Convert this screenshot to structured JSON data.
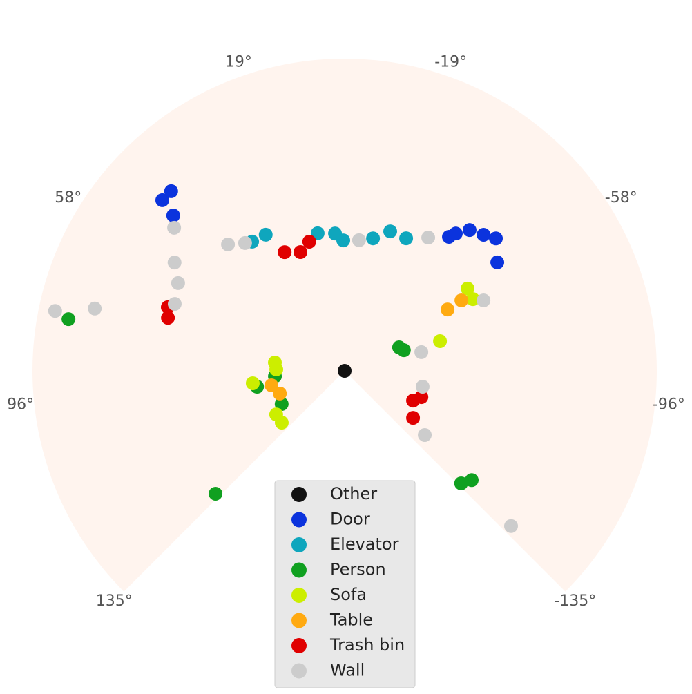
{
  "chart_data": {
    "type": "polar-scatter",
    "thetalim": [
      -135,
      135
    ],
    "rlim": [
      0,
      10
    ],
    "thetaticks": [
      {
        "value": 19,
        "label": "19°"
      },
      {
        "value": -19,
        "label": "-19°"
      },
      {
        "value": 58,
        "label": "58°"
      },
      {
        "value": -58,
        "label": "-58°"
      },
      {
        "value": 96,
        "label": "96°"
      },
      {
        "value": -96,
        "label": "-96°"
      },
      {
        "value": 135,
        "label": "135°"
      },
      {
        "value": -135,
        "label": "-135°"
      }
    ],
    "background": "#fff4ee",
    "legend": "lower center",
    "series": [
      {
        "name": "Other",
        "color": "#111111",
        "theta": [
          0
        ],
        "r": [
          0
        ]
      },
      {
        "name": "Door",
        "color": "#0b33dd",
        "theta": [
          46.9,
          44.0,
          47.8,
          -37.9,
          -39.0,
          -41.6,
          -45.6,
          -48.8,
          -54.6
        ],
        "r": [
          8.0,
          8.0,
          7.41,
          5.44,
          5.66,
          6.03,
          6.23,
          6.44,
          6.0
        ]
      },
      {
        "name": "Elevator",
        "color": "#0fa6bd",
        "theta": [
          35.6,
          30.1,
          11.1,
          4.0,
          0.6,
          -12.1,
          -18.1,
          -24.9
        ],
        "r": [
          5.09,
          5.04,
          4.49,
          4.41,
          4.18,
          4.34,
          4.7,
          4.68
        ]
      },
      {
        "name": "Person",
        "color": "#10a020",
        "theta": [
          79.4,
          133.6,
          100.3,
          94.5,
          117.8,
          -66.7,
          -70.8,
          -134.0,
          -130.7
        ],
        "r": [
          9.0,
          5.71,
          2.85,
          2.24,
          2.28,
          1.9,
          2.01,
          5.19,
          5.37
        ]
      },
      {
        "name": "Sofa",
        "color": "#ccee00",
        "theta": [
          83.2,
          88.8,
          97.7,
          122.5,
          129.5,
          -56.2,
          -60.8,
          -72.7
        ],
        "r": [
          2.25,
          2.19,
          2.97,
          2.6,
          2.61,
          4.74,
          4.71,
          3.2
        ]
      },
      {
        "name": "Table",
        "color": "#ffaa11",
        "theta": [
          -59.2,
          -58.9,
          101.2,
          109.3
        ],
        "r": [
          3.84,
          4.37,
          2.39,
          2.2
        ]
      },
      {
        "name": "Trash bin",
        "color": "#e00000",
        "theta": [
          70.2,
          73.3,
          26.8,
          20.4,
          15.3,
          -113.5,
          -124.5,
          -108.9
        ],
        "r": [
          6.02,
          5.91,
          4.26,
          4.06,
          4.29,
          2.39,
          2.66,
          2.6
        ]
      },
      {
        "name": "Wall",
        "color": "#cccccc",
        "theta": [
          78.3,
          76.0,
          42.7,
          37.9,
          50.0,
          57.5,
          62.2,
          68.5,
          -6.3,
          -32.1,
          -63.1,
          -76.3,
          -101.5,
          -128.7,
          -133.0
        ],
        "r": [
          9.47,
          8.25,
          5.51,
          5.19,
          7.13,
          6.46,
          6.03,
          5.85,
          4.21,
          5.04,
          4.99,
          2.53,
          2.55,
          3.29,
          7.29
        ]
      }
    ]
  }
}
